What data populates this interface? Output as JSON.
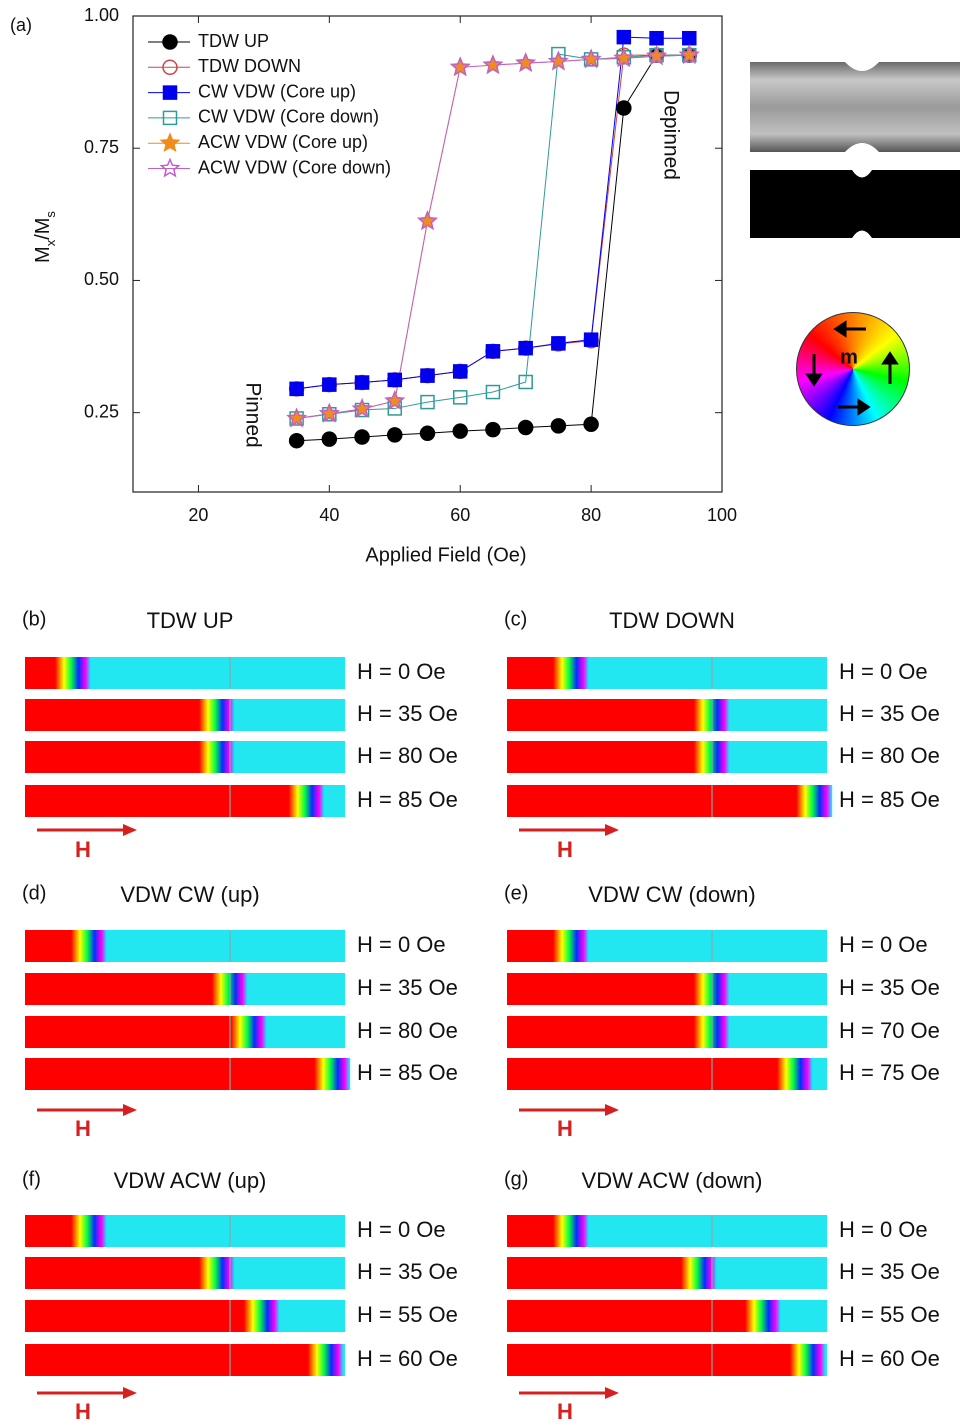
{
  "chart_data": {
    "type": "line",
    "panel_label": "(a)",
    "xlabel": "Applied Field (Oe)",
    "ylabel": [
      "M",
      "x",
      "/M",
      "s"
    ],
    "x": [
      35,
      40,
      45,
      50,
      55,
      60,
      65,
      70,
      75,
      80,
      85,
      90,
      95
    ],
    "xlim": [
      10,
      100
    ],
    "xticks": [
      20,
      40,
      60,
      80,
      100
    ],
    "ylim": [
      0.1,
      1.0
    ],
    "yticks": [
      {
        "value": 0.25,
        "label": "0.25"
      },
      {
        "value": 0.5,
        "label": "0.50"
      },
      {
        "value": 0.75,
        "label": "0.75"
      },
      {
        "value": 1.0,
        "label": "1.00"
      }
    ],
    "legend": "upper left",
    "series": [
      {
        "name": "TDW UP",
        "color": "#000000",
        "marker": "circle",
        "filled": true,
        "values": [
          0.197,
          0.2,
          0.204,
          0.208,
          0.211,
          0.215,
          0.218,
          0.222,
          0.225,
          0.228,
          0.826,
          0.926,
          0.926
        ]
      },
      {
        "name": "TDW DOWN",
        "color": "#c8464a",
        "marker": "circle",
        "filled": false,
        "values": [
          0.295,
          0.303,
          0.307,
          0.312,
          0.32,
          0.328,
          0.366,
          0.372,
          0.38,
          0.386,
          0.926,
          0.926,
          0.926
        ]
      },
      {
        "name": "CW VDW (Core up)",
        "color": "#0000ee",
        "marker": "square",
        "filled": true,
        "values": [
          0.295,
          0.303,
          0.307,
          0.312,
          0.32,
          0.328,
          0.366,
          0.372,
          0.381,
          0.388,
          0.96,
          0.958,
          0.958
        ]
      },
      {
        "name": "CW VDW (Core down)",
        "color": "#2e9a9a",
        "marker": "square",
        "filled": false,
        "values": [
          0.239,
          0.247,
          0.255,
          0.258,
          0.27,
          0.279,
          0.289,
          0.308,
          0.928,
          0.918,
          0.922,
          0.926,
          0.926
        ]
      },
      {
        "name": "ACW VDW (Core up)",
        "color": "#f08c1e",
        "marker": "star",
        "filled": true,
        "values": [
          0.239,
          0.248,
          0.257,
          0.272,
          0.612,
          0.903,
          0.907,
          0.911,
          0.914,
          0.918,
          0.92,
          0.924,
          0.926
        ]
      },
      {
        "name": "ACW VDW (Core down)",
        "color": "#c060c8",
        "marker": "star",
        "filled": false,
        "values": [
          0.239,
          0.248,
          0.257,
          0.272,
          0.612,
          0.903,
          0.907,
          0.911,
          0.914,
          0.918,
          0.92,
          0.924,
          0.926
        ]
      }
    ],
    "annotations": [
      "Pinned",
      "Depinned"
    ]
  },
  "wheel_label": "m",
  "panels": [
    {
      "label": "(b)",
      "title": "TDW UP",
      "fields": [
        "H = 0 Oe",
        "H = 35 Oe",
        "H = 80 Oe",
        "H = 85 Oe"
      ],
      "arrow": "H"
    },
    {
      "label": "(c)",
      "title": "TDW DOWN",
      "fields": [
        "H = 0 Oe",
        "H = 35 Oe",
        "H = 80 Oe",
        "H = 85 Oe"
      ],
      "arrow": "H"
    },
    {
      "label": "(d)",
      "title": "VDW CW (up)",
      "fields": [
        "H = 0 Oe",
        "H = 35 Oe",
        "H = 80 Oe",
        "H = 85 Oe"
      ],
      "arrow": "H"
    },
    {
      "label": "(e)",
      "title": "VDW CW (down)",
      "fields": [
        "H = 0 Oe",
        "H = 35 Oe",
        "H = 70 Oe",
        "H = 75 Oe"
      ],
      "arrow": "H"
    },
    {
      "label": "(f)",
      "title": "VDW ACW (up)",
      "fields": [
        "H = 0 Oe",
        "H = 35 Oe",
        "H = 55 Oe",
        "H = 60 Oe"
      ],
      "arrow": "H"
    },
    {
      "label": "(g)",
      "title": "VDW ACW (down)",
      "fields": [
        "H = 0 Oe",
        "H = 35 Oe",
        "H = 55 Oe",
        "H = 60 Oe"
      ],
      "arrow": "H"
    }
  ]
}
